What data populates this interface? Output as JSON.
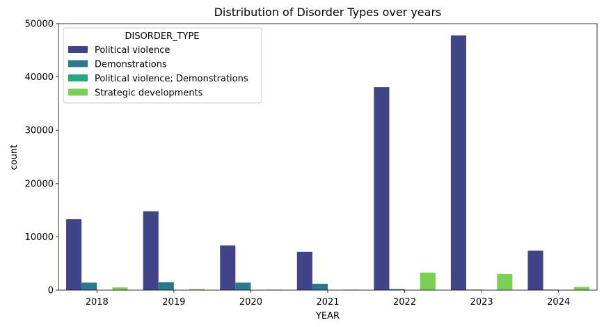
{
  "chart_data": {
    "type": "bar",
    "title": "Distribution of Disorder Types over years",
    "xlabel": "YEAR",
    "ylabel": "count",
    "categories": [
      "2018",
      "2019",
      "2020",
      "2021",
      "2022",
      "2023",
      "2024"
    ],
    "ylim": [
      0,
      50000
    ],
    "yticks": [
      0,
      10000,
      20000,
      30000,
      40000,
      50000
    ],
    "grid": false,
    "legend": {
      "title": "DISORDER_TYPE",
      "placement": "top-left"
    },
    "series": [
      {
        "name": "Political violence",
        "color": "#414487",
        "values": [
          13300,
          14800,
          8400,
          7200,
          38100,
          47800,
          7400
        ]
      },
      {
        "name": "Demonstrations",
        "color": "#2a788e",
        "values": [
          1400,
          1500,
          1400,
          1200,
          200,
          100,
          100
        ]
      },
      {
        "name": "Political violence; Demonstrations",
        "color": "#22a884",
        "values": [
          0,
          0,
          0,
          0,
          0,
          0,
          0
        ]
      },
      {
        "name": "Strategic developments",
        "color": "#7ad151",
        "values": [
          500,
          200,
          100,
          100,
          3300,
          3000,
          600
        ]
      }
    ]
  }
}
